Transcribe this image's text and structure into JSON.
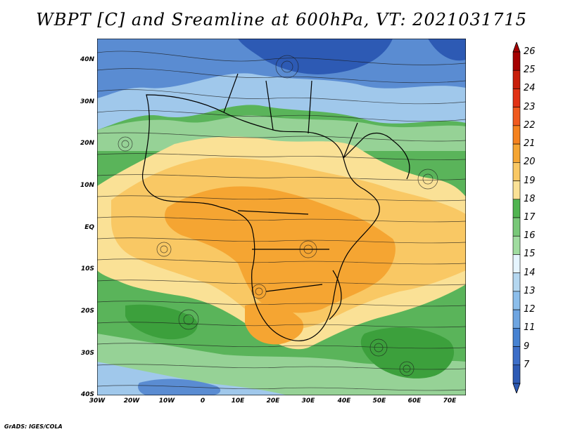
{
  "title": "WBPT [C] and Sreamline at 600hPa, VT: 2021031715",
  "credit": "GrADS: IGES/COLA",
  "lat_labels": [
    "40N",
    "30N",
    "20N",
    "10N",
    "EQ",
    "10S",
    "20S",
    "30S",
    "40S"
  ],
  "lon_labels": [
    "30W",
    "20W",
    "10W",
    "0",
    "10E",
    "20E",
    "30E",
    "40E",
    "50E",
    "60E",
    "70E"
  ],
  "colorbar": {
    "labels": [
      "26",
      "25",
      "24",
      "23",
      "22",
      "21",
      "20",
      "19",
      "18",
      "17",
      "16",
      "15",
      "14",
      "13",
      "12",
      "11",
      "9",
      "7"
    ],
    "colors": [
      "#a50000",
      "#c81e0a",
      "#e13214",
      "#f05a1e",
      "#f5821e",
      "#f5a532",
      "#f9c864",
      "#fae196",
      "#50b450",
      "#78c878",
      "#a0dca0",
      "#e6f5ff",
      "#b4d7f0",
      "#8cbeeb",
      "#6ea5e1",
      "#4682d2",
      "#3c6ec8",
      "#2d5ab4"
    ]
  },
  "map_colors": {
    "deep_blue": "#2d5ab4",
    "blue": "#5a8cd2",
    "light_blue": "#a0c8eb",
    "dark_green": "#3ca03c",
    "green": "#5ab45a",
    "light_green": "#96d296",
    "light_orange": "#fae196",
    "orange": "#f9c864",
    "dark_orange": "#f5a532"
  }
}
